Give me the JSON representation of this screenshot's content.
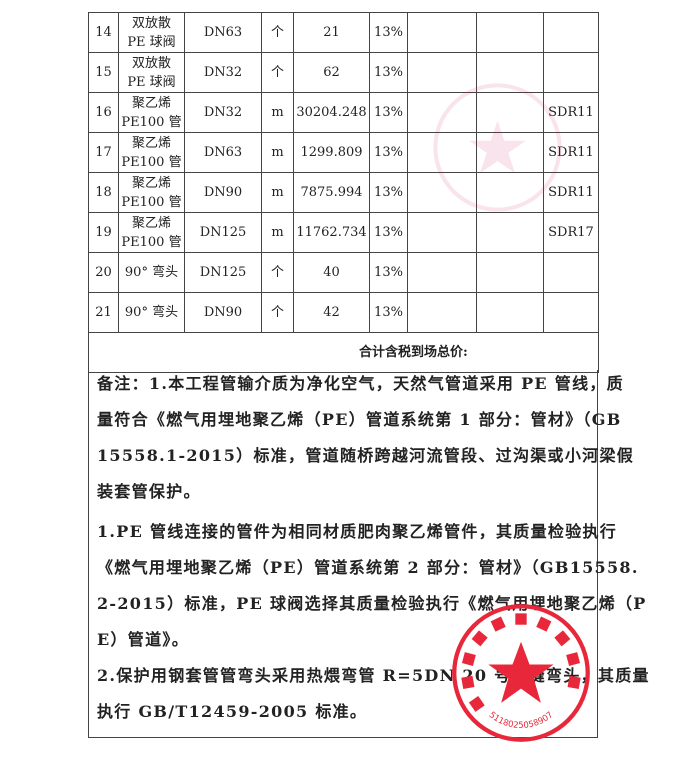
{
  "table": {
    "rows": [
      {
        "no": "14",
        "name1": "双放散",
        "name2": "PE 球阀",
        "spec": "DN63",
        "unit": "个",
        "qty": "21",
        "tax": "13%",
        "c7": "",
        "c8": "",
        "remark": ""
      },
      {
        "no": "15",
        "name1": "双放散",
        "name2": "PE 球阀",
        "spec": "DN32",
        "unit": "个",
        "qty": "62",
        "tax": "13%",
        "c7": "",
        "c8": "",
        "remark": ""
      },
      {
        "no": "16",
        "name1": "聚乙烯",
        "name2": "PE100 管",
        "spec": "DN32",
        "unit": "m",
        "qty": "30204.248",
        "tax": "13%",
        "c7": "",
        "c8": "",
        "remark": "SDR11"
      },
      {
        "no": "17",
        "name1": "聚乙烯",
        "name2": "PE100 管",
        "spec": "DN63",
        "unit": "m",
        "qty": "1299.809",
        "tax": "13%",
        "c7": "",
        "c8": "",
        "remark": "SDR11"
      },
      {
        "no": "18",
        "name1": "聚乙烯",
        "name2": "PE100 管",
        "spec": "DN90",
        "unit": "m",
        "qty": "7875.994",
        "tax": "13%",
        "c7": "",
        "c8": "",
        "remark": "SDR11"
      },
      {
        "no": "19",
        "name1": "聚乙烯",
        "name2": "PE100 管",
        "spec": "DN125",
        "unit": "m",
        "qty": "11762.734",
        "tax": "13%",
        "c7": "",
        "c8": "",
        "remark": "SDR17"
      },
      {
        "no": "20",
        "name1": "90° 弯头",
        "name2": "",
        "spec": "DN125",
        "unit": "个",
        "qty": "40",
        "tax": "13%",
        "c7": "",
        "c8": "",
        "remark": ""
      },
      {
        "no": "21",
        "name1": "90° 弯头",
        "name2": "",
        "spec": "DN90",
        "unit": "个",
        "qty": "42",
        "tax": "13%",
        "c7": "",
        "c8": "",
        "remark": ""
      }
    ],
    "total_label": "合计含税到场总价:"
  },
  "notes": {
    "lines": [
      "备注：1.本工程管输介质为净化空气，天然气管道采用 PE 管线，质",
      "量符合《燃气用埋地聚乙烯（PE）管道系统第 1 部分：管材》（GB",
      "15558.1-2015）标准，管道随桥跨越河流管段、过沟渠或小河梁假",
      "装套管保护。",
      "1.PE 管线连接的管件为相同材质肥肉聚乙烯管件，其质量检验执行",
      "《燃气用埋地聚乙烯（PE）管道系统第 2 部分：管材》（GB15558.",
      "2-2015）标准，PE 球阀选择其质量检验执行《燃气用埋地聚乙烯（P",
      "E）管道》。",
      "2.保护用钢套管管弯头采用热煨弯管 R=5DN 20 号无缝弯头，其质量",
      "执行 GB/T12459-2005 标准。"
    ]
  },
  "stamp": {
    "number": "5118025058907",
    "color": "#e8283a"
  }
}
